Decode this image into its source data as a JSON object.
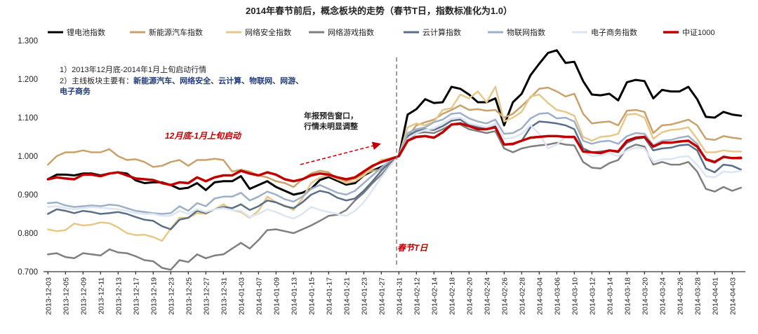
{
  "chart_data": {
    "type": "line",
    "title": "2014年春节前后，概念板块的走势（春节T日，指数标准化为1.0）",
    "ylim": [
      0.7,
      1.3
    ],
    "yticks": [
      "0.700",
      "0.800",
      "0.900",
      "1.000",
      "1.100",
      "1.200",
      "1.300"
    ],
    "xtick_labels": [
      "2013-12-03",
      "2013-12-05",
      "2013-12-09",
      "2013-12-11",
      "2013-12-13",
      "2013-12-17",
      "2013-12-19",
      "2013-12-23",
      "2013-12-25",
      "2013-12-27",
      "2013-12-31",
      "2014-01-03",
      "2014-01-07",
      "2014-01-09",
      "2014-01-13",
      "2014-01-15",
      "2014-01-17",
      "2014-01-21",
      "2014-01-23",
      "2014-01-27",
      "2014-01-31",
      "2014-02-12",
      "2014-02-14",
      "2014-02-18",
      "2014-02-20",
      "2014-02-24",
      "2014-02-26",
      "2014-02-28",
      "2014-03-04",
      "2014-03-06",
      "2014-03-10",
      "2014-03-12",
      "2014-03-14",
      "2014-03-18",
      "2014-03-20",
      "2014-03-24",
      "2014-03-26",
      "2014-03-28",
      "2014-04-01",
      "2014-04-03"
    ],
    "num_points": 80,
    "divider_index": 40,
    "series": [
      {
        "name": "锂电池指数",
        "color": "#000000",
        "width": 3,
        "values": [
          0.94,
          0.952,
          0.952,
          0.95,
          0.955,
          0.955,
          0.95,
          0.955,
          0.958,
          0.955,
          0.937,
          0.93,
          0.932,
          0.932,
          0.925,
          0.915,
          0.918,
          0.93,
          0.912,
          0.932,
          0.935,
          0.935,
          0.948,
          0.915,
          0.925,
          0.935,
          0.92,
          0.91,
          0.9,
          0.905,
          0.915,
          0.938,
          0.946,
          0.936,
          0.926,
          0.93,
          0.95,
          0.962,
          0.972,
          0.982,
          1.0,
          1.108,
          1.122,
          1.148,
          1.138,
          1.14,
          1.18,
          1.175,
          1.16,
          1.14,
          1.14,
          1.15,
          1.08,
          1.14,
          1.162,
          1.21,
          1.24,
          1.268,
          1.275,
          1.242,
          1.245,
          1.195,
          1.16,
          1.158,
          1.162,
          1.145,
          1.192,
          1.198,
          1.195,
          1.15,
          1.172,
          1.168,
          1.168,
          1.18,
          1.148,
          1.102,
          1.1,
          1.115,
          1.108,
          1.105
        ]
      },
      {
        "name": "新能源汽车指数",
        "color": "#c9a26b",
        "width": 2.5,
        "values": [
          0.978,
          1.0,
          1.01,
          1.01,
          1.015,
          1.01,
          1.01,
          1.018,
          1.0,
          0.99,
          0.992,
          0.985,
          0.972,
          0.975,
          0.985,
          0.99,
          0.975,
          0.99,
          0.99,
          0.993,
          0.99,
          0.96,
          0.965,
          0.96,
          0.95,
          0.945,
          0.935,
          0.93,
          0.92,
          0.94,
          0.955,
          0.962,
          0.958,
          0.94,
          0.935,
          0.942,
          0.955,
          0.962,
          0.966,
          0.98,
          1.0,
          1.05,
          1.08,
          1.088,
          1.095,
          1.11,
          1.12,
          1.132,
          1.12,
          1.122,
          1.118,
          1.12,
          1.1,
          1.11,
          1.13,
          1.152,
          1.175,
          1.178,
          1.168,
          1.155,
          1.162,
          1.11,
          1.085,
          1.088,
          1.09,
          1.08,
          1.118,
          1.12,
          1.115,
          1.06,
          1.08,
          1.082,
          1.088,
          1.095,
          1.08,
          1.045,
          1.042,
          1.052,
          1.048,
          1.045
        ]
      },
      {
        "name": "网络安全指数",
        "color": "#e6c88a",
        "width": 2.5,
        "values": [
          0.81,
          0.805,
          0.808,
          0.825,
          0.82,
          0.822,
          0.828,
          0.826,
          0.815,
          0.8,
          0.795,
          0.796,
          0.79,
          0.78,
          0.812,
          0.84,
          0.84,
          0.852,
          0.85,
          0.862,
          0.875,
          0.86,
          0.855,
          0.84,
          0.858,
          0.895,
          0.88,
          0.872,
          0.86,
          0.89,
          0.93,
          0.945,
          0.95,
          0.94,
          0.93,
          0.935,
          0.95,
          0.97,
          0.99,
          0.995,
          1.0,
          1.075,
          1.085,
          1.08,
          1.09,
          1.12,
          1.125,
          1.16,
          1.15,
          1.168,
          1.14,
          1.18,
          1.09,
          1.1,
          1.115,
          1.155,
          1.16,
          1.138,
          1.12,
          1.115,
          1.105,
          1.05,
          1.04,
          1.05,
          1.052,
          1.058,
          1.108,
          1.11,
          1.1,
          1.045,
          1.062,
          1.068,
          1.07,
          1.075,
          1.045,
          1.01,
          1.01,
          1.015,
          1.012,
          1.012
        ]
      },
      {
        "name": "网络游戏指数",
        "color": "#7f7f7f",
        "width": 2.5,
        "values": [
          0.745,
          0.748,
          0.738,
          0.735,
          0.748,
          0.745,
          0.742,
          0.758,
          0.75,
          0.748,
          0.74,
          0.73,
          0.727,
          0.71,
          0.705,
          0.73,
          0.725,
          0.745,
          0.735,
          0.742,
          0.745,
          0.76,
          0.775,
          0.76,
          0.782,
          0.808,
          0.81,
          0.805,
          0.8,
          0.81,
          0.82,
          0.832,
          0.845,
          0.848,
          0.86,
          0.885,
          0.905,
          0.93,
          0.952,
          0.978,
          1.0,
          1.04,
          1.06,
          1.062,
          1.06,
          1.07,
          1.082,
          1.082,
          1.07,
          1.065,
          1.06,
          1.065,
          1.02,
          1.01,
          1.02,
          1.025,
          1.028,
          1.03,
          1.035,
          1.03,
          1.028,
          0.985,
          0.97,
          0.968,
          0.982,
          0.99,
          1.02,
          1.03,
          1.025,
          0.978,
          0.985,
          0.978,
          0.978,
          0.985,
          0.96,
          0.915,
          0.908,
          0.92,
          0.91,
          0.918
        ]
      },
      {
        "name": "云计算指数",
        "color": "#5a6f87",
        "width": 2.5,
        "values": [
          0.85,
          0.862,
          0.858,
          0.852,
          0.858,
          0.855,
          0.85,
          0.852,
          0.855,
          0.85,
          0.842,
          0.835,
          0.832,
          0.818,
          0.81,
          0.835,
          0.84,
          0.858,
          0.852,
          0.862,
          0.868,
          0.865,
          0.875,
          0.86,
          0.87,
          0.885,
          0.88,
          0.87,
          0.865,
          0.88,
          0.9,
          0.91,
          0.905,
          0.892,
          0.885,
          0.89,
          0.91,
          0.935,
          0.962,
          0.985,
          1.0,
          1.052,
          1.065,
          1.07,
          1.068,
          1.078,
          1.092,
          1.095,
          1.08,
          1.075,
          1.07,
          1.078,
          1.03,
          1.03,
          1.04,
          1.075,
          1.09,
          1.088,
          1.085,
          1.08,
          1.07,
          1.02,
          1.01,
          1.012,
          1.015,
          1.01,
          1.035,
          1.045,
          1.048,
          1.015,
          1.02,
          1.022,
          1.028,
          1.03,
          1.015,
          0.968,
          0.958,
          0.978,
          0.975,
          0.965
        ]
      },
      {
        "name": "物联网指数",
        "color": "#9eb0c8",
        "width": 2.5,
        "values": [
          0.878,
          0.88,
          0.872,
          0.868,
          0.87,
          0.872,
          0.87,
          0.874,
          0.872,
          0.865,
          0.858,
          0.855,
          0.852,
          0.85,
          0.852,
          0.87,
          0.858,
          0.878,
          0.87,
          0.89,
          0.895,
          0.895,
          0.905,
          0.885,
          0.895,
          0.908,
          0.9,
          0.888,
          0.882,
          0.895,
          0.915,
          0.925,
          0.915,
          0.905,
          0.9,
          0.91,
          0.93,
          0.95,
          0.97,
          0.988,
          1.0,
          1.06,
          1.07,
          1.075,
          1.088,
          1.095,
          1.11,
          1.112,
          1.098,
          1.09,
          1.085,
          1.095,
          1.058,
          1.06,
          1.072,
          1.098,
          1.11,
          1.112,
          1.098,
          1.1,
          1.09,
          1.04,
          1.032,
          1.038,
          1.04,
          1.032,
          1.052,
          1.06,
          1.058,
          1.028,
          1.04,
          1.042,
          1.048,
          1.052,
          1.032,
          0.99,
          0.982,
          1.0,
          0.995,
          0.998
        ]
      },
      {
        "name": "电子商务指数",
        "color": "#dce5f2",
        "width": 2.5,
        "values": [
          0.868,
          0.87,
          0.865,
          0.862,
          0.865,
          0.868,
          0.866,
          0.864,
          0.862,
          0.858,
          0.852,
          0.85,
          0.85,
          0.845,
          0.845,
          0.858,
          0.85,
          0.862,
          0.855,
          0.862,
          0.865,
          0.86,
          0.858,
          0.842,
          0.85,
          0.862,
          0.855,
          0.845,
          0.838,
          0.85,
          0.868,
          0.86,
          0.855,
          0.85,
          0.845,
          0.858,
          0.88,
          0.912,
          0.945,
          0.975,
          1.0,
          1.045,
          1.06,
          1.068,
          1.072,
          1.085,
          1.098,
          1.1,
          1.085,
          1.08,
          1.075,
          1.085,
          1.045,
          1.048,
          1.058,
          1.08,
          1.058,
          1.02,
          1.03,
          1.05,
          1.045,
          1.01,
          1.0,
          1.002,
          1.008,
          1.0,
          1.015,
          1.022,
          1.02,
          0.985,
          0.992,
          0.992,
          0.998,
          1.0,
          0.978,
          0.948,
          0.945,
          0.96,
          0.958,
          0.962
        ]
      },
      {
        "name": "中证1000",
        "color": "#c00000",
        "width": 3.5,
        "values": [
          0.94,
          0.945,
          0.942,
          0.94,
          0.952,
          0.952,
          0.948,
          0.955,
          0.958,
          0.95,
          0.942,
          0.94,
          0.938,
          0.93,
          0.925,
          0.932,
          0.93,
          0.945,
          0.935,
          0.945,
          0.95,
          0.95,
          0.962,
          0.955,
          0.95,
          0.958,
          0.952,
          0.94,
          0.935,
          0.94,
          0.95,
          0.955,
          0.952,
          0.945,
          0.94,
          0.945,
          0.96,
          0.975,
          0.985,
          0.992,
          1.0,
          1.04,
          1.05,
          1.052,
          1.048,
          1.062,
          1.082,
          1.085,
          1.078,
          1.07,
          1.07,
          1.075,
          1.03,
          1.032,
          1.04,
          1.048,
          1.05,
          1.052,
          1.052,
          1.05,
          1.05,
          1.012,
          1.01,
          1.008,
          1.015,
          1.012,
          1.04,
          1.048,
          1.05,
          1.025,
          1.035,
          1.035,
          1.038,
          1.04,
          1.025,
          0.992,
          0.985,
          0.998,
          0.995,
          0.995
        ]
      }
    ],
    "annotations": {
      "note_line1": "1）2013年12月底-2014年1月上旬启动行情",
      "note_line2_prefix": "2）主线板块主要有：",
      "note_line2_blue": "新能源汽车、网络安全、云计算、物联网、网游、",
      "note_line3_blue": "电子商务",
      "red_label": "12月底-1月上旬启动",
      "arrow_label_1": "年报预告窗口，",
      "arrow_label_2": "行情未明显调整",
      "divider_label": "春节T日"
    }
  }
}
